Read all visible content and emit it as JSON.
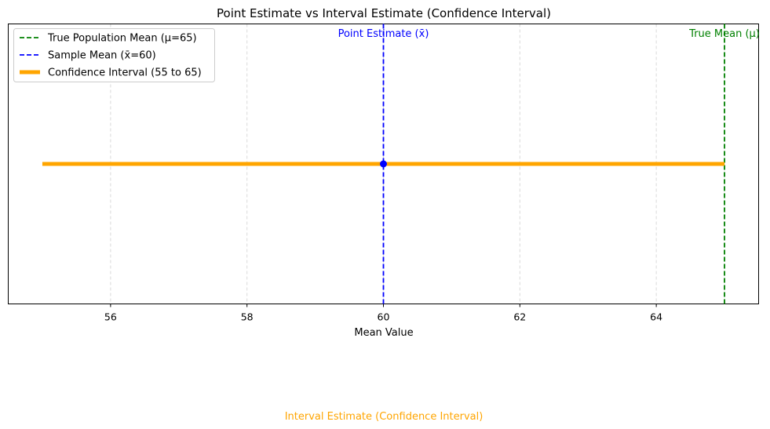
{
  "chart_data": {
    "type": "line",
    "title": "Point Estimate vs Interval Estimate (Confidence Interval)",
    "xlabel": "Mean Value",
    "ylabel": "",
    "xlim": [
      54.5,
      65.5
    ],
    "xticks": [
      56,
      58,
      60,
      62,
      64
    ],
    "grid": "vertical dashed",
    "legend_position": "top-left",
    "series": [
      {
        "name": "True Population Mean (μ=65)",
        "kind": "vline",
        "x": 65,
        "color": "#008000",
        "style": "dashed"
      },
      {
        "name": "Sample Mean (x̄=60)",
        "kind": "vline",
        "x": 60,
        "color": "#0000ff",
        "style": "dashed"
      },
      {
        "name": "Confidence Interval (55 to 65)",
        "kind": "hline",
        "x": [
          55,
          65
        ],
        "color": "#ffa500",
        "style": "solid"
      }
    ],
    "point": {
      "x": 60,
      "color": "#0000ff"
    },
    "annotations": [
      {
        "text": "Point Estimate (x̄)",
        "x": 60,
        "color": "#0000ff"
      },
      {
        "text": "True Mean (μ)",
        "x": 65,
        "color": "#008000"
      }
    ],
    "footer_text": "Interval Estimate (Confidence Interval)",
    "footer_color": "#ffa500"
  }
}
